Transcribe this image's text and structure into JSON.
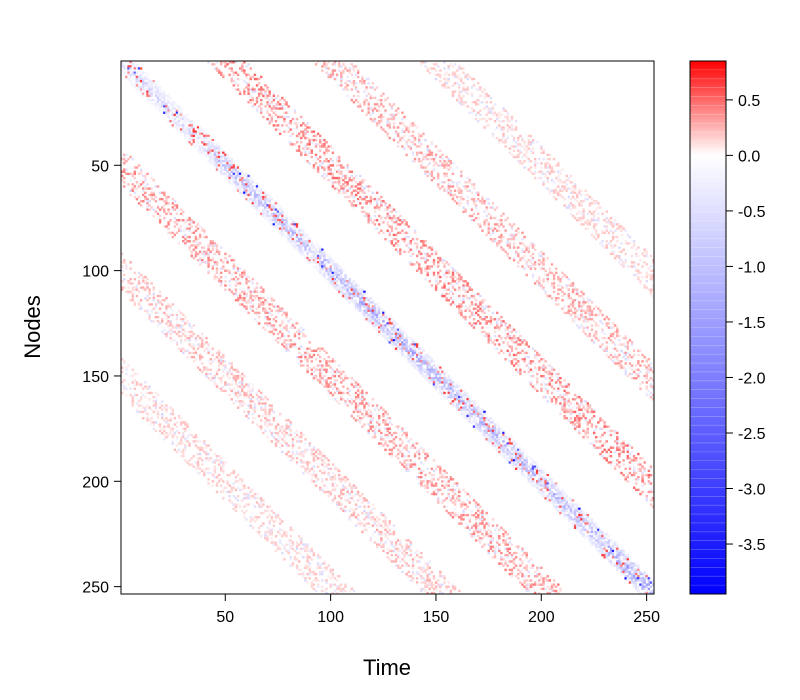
{
  "chart_data": {
    "type": "heatmap",
    "title": "",
    "xlabel": "Time",
    "ylabel": "Nodes",
    "xlim": [
      1,
      253
    ],
    "ylim": [
      1,
      253
    ],
    "y_reversed": true,
    "x_ticks": [
      50,
      100,
      150,
      200,
      250
    ],
    "y_ticks": [
      50,
      100,
      150,
      200,
      250
    ],
    "x_tick_labels": [
      "50",
      "100",
      "150",
      "200",
      "250"
    ],
    "y_tick_labels": [
      "50",
      "100",
      "150",
      "200",
      "250"
    ],
    "colorbar": {
      "min": -3.95,
      "max": 0.85,
      "ticks": [
        0.5,
        0.0,
        -0.5,
        -1.0,
        -1.5,
        -2.0,
        -2.5,
        -3.0,
        -3.5
      ],
      "tick_labels": [
        "0.5",
        "0.0",
        "-0.5",
        "-1.0",
        "-1.5",
        "-2.0",
        "-2.5",
        "-3.0",
        "-3.5"
      ],
      "low_color": "#0000ff",
      "mid_color": "#ffffff",
      "high_color": "#ff0000"
    },
    "diagonal_blocks": [
      {
        "t": [
          5,
          45
        ],
        "n": [
          5,
          40
        ],
        "mean": -0.5
      },
      {
        "t": [
          45,
          90
        ],
        "n": [
          42,
          90
        ],
        "mean": -0.8
      },
      {
        "t": [
          95,
          145
        ],
        "n": [
          90,
          140
        ],
        "mean": -1.0
      },
      {
        "t": [
          145,
          195
        ],
        "n": [
          140,
          190
        ],
        "mean": -0.9
      },
      {
        "t": [
          195,
          232
        ],
        "n": [
          190,
          232
        ],
        "mean": -0.8
      },
      {
        "t": [
          232,
          253
        ],
        "n": [
          232,
          253
        ],
        "mean": -1.1
      }
    ],
    "off_diagonal_bands": [
      {
        "t_offset": 50,
        "mean": 0.35
      },
      {
        "t_offset": 100,
        "mean": 0.25
      },
      {
        "t_offset": -50,
        "mean": 0.3
      },
      {
        "t_offset": -100,
        "mean": 0.2
      },
      {
        "t_offset": -150,
        "mean": 0.15
      },
      {
        "t_offset": 150,
        "mean": 0.15
      }
    ]
  }
}
